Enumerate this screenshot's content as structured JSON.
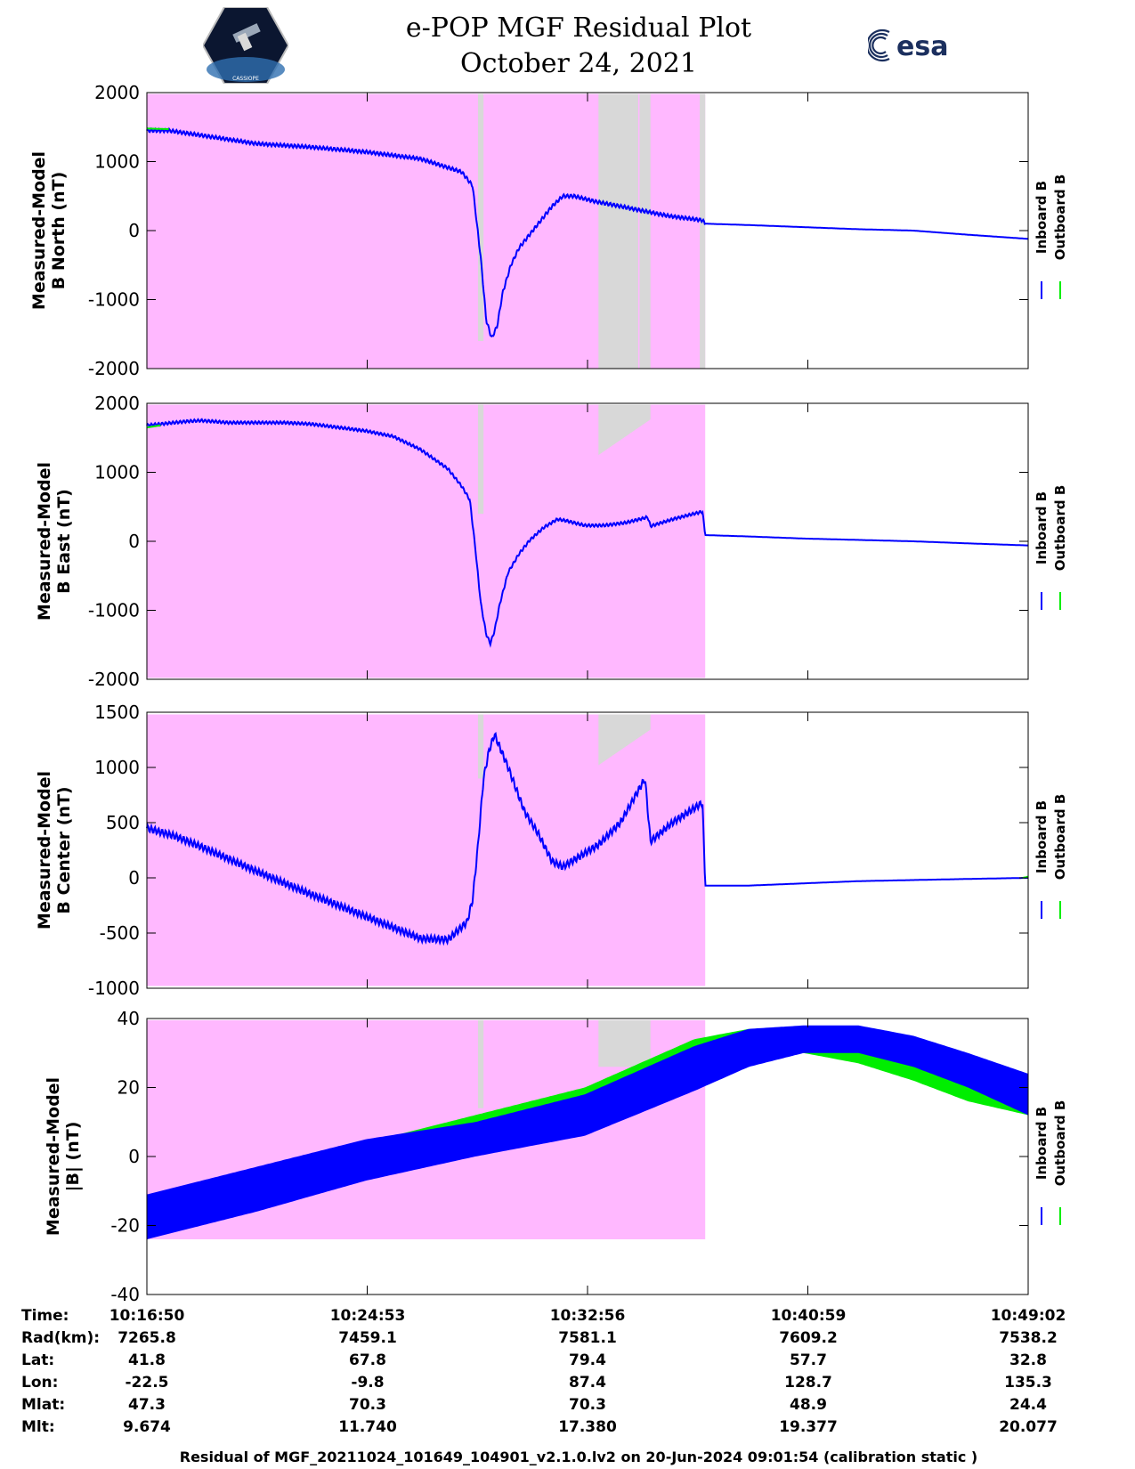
{
  "header": {
    "title_line1": "e-POP MGF Residual Plot",
    "title_line2": "October 24, 2021",
    "left_logo_text": "CASSIOPE",
    "right_logo_text": "esa"
  },
  "footer": "Residual of MGF_20211024_101649_104901_v2.1.0.lv2 on 20-Jun-2024 09:01:54 (calibration static )",
  "colors": {
    "inboard": "#0000ff",
    "outboard": "#00ee00",
    "shade_magenta": "#ffb8ff",
    "shade_gray": "#d8d8d8"
  },
  "ephemeris": {
    "rows": [
      {
        "label": "Time:",
        "values": [
          "10:16:50",
          "10:24:53",
          "10:32:56",
          "10:40:59",
          "10:49:02"
        ]
      },
      {
        "label": "Rad(km):",
        "values": [
          "7265.8",
          "7459.1",
          "7581.1",
          "7609.2",
          "7538.2"
        ]
      },
      {
        "label": "Lat:",
        "values": [
          "41.8",
          "67.8",
          "79.4",
          "57.7",
          "32.8"
        ]
      },
      {
        "label": "Lon:",
        "values": [
          "-22.5",
          "-9.8",
          "87.4",
          "128.7",
          "135.3"
        ]
      },
      {
        "label": "Mlat:",
        "values": [
          "47.3",
          "70.3",
          "70.3",
          "48.9",
          "24.4"
        ]
      },
      {
        "label": "Mlt:",
        "values": [
          "9.674",
          "11.740",
          "17.380",
          "19.377",
          "20.077"
        ]
      }
    ]
  },
  "chart_data": [
    {
      "type": "line",
      "ylabel": [
        "Measured-Model",
        "B North (nT)"
      ],
      "ylim": [
        -2000,
        2000
      ],
      "yticks": [
        2000,
        1000,
        0,
        -1000,
        -2000
      ],
      "xlim_minutes": [
        0,
        32.2
      ],
      "xtick_minutes": [
        0,
        8.05,
        16.1,
        24.15,
        32.2
      ],
      "magenta_span": [
        0,
        20.4
      ],
      "magenta_top": 1980,
      "gray_bands": [
        {
          "x0": 12.1,
          "x1": 12.3,
          "top": 1980,
          "bottom": -1600
        },
        {
          "x0": 16.5,
          "x1": 17.95,
          "top": 1980,
          "bottom": -2000
        },
        {
          "x0": 18.0,
          "x1": 18.4,
          "top": 1980,
          "bottom": -2000
        },
        {
          "x0": 20.2,
          "x1": 20.4,
          "top": 1980,
          "bottom": -2000
        }
      ],
      "series": [
        {
          "name": "Inboard B",
          "color": "#0000ff",
          "x": [
            0,
            0.8,
            2,
            4,
            6,
            8,
            10,
            11.5,
            11.9,
            12.2,
            12.4,
            12.6,
            12.8,
            13.0,
            13.3,
            13.6,
            14.0,
            14.4,
            14.8,
            15.2,
            15.6,
            16.4,
            17.2,
            18.2,
            19.1,
            20.3,
            20.4,
            22,
            24,
            26,
            28,
            30,
            32.2
          ],
          "y": [
            1450,
            1450,
            1380,
            1260,
            1210,
            1140,
            1040,
            850,
            650,
            -400,
            -1300,
            -1560,
            -1380,
            -900,
            -500,
            -250,
            -50,
            150,
            350,
            500,
            500,
            420,
            360,
            280,
            210,
            150,
            100,
            80,
            50,
            20,
            0,
            -60,
            -120
          ],
          "ripple": 25,
          "ripple_until": 20.4
        },
        {
          "name": "Outboard B",
          "color": "#00ee00",
          "x": [
            0,
            0.8
          ],
          "y": [
            1480,
            1470
          ]
        }
      ]
    },
    {
      "type": "line",
      "ylabel": [
        "Measured-Model",
        "B East (nT)"
      ],
      "ylim": [
        -2000,
        2000
      ],
      "yticks": [
        2000,
        1000,
        0,
        -1000,
        -2000
      ],
      "xlim_minutes": [
        0,
        32.2
      ],
      "xtick_minutes": [
        0,
        8.05,
        16.1,
        24.15,
        32.2
      ],
      "magenta_span": [
        0,
        20.4
      ],
      "magenta_top": 1980,
      "magenta_bottom": -1980,
      "gray_bands": [
        {
          "x0": 12.1,
          "x1": 12.3,
          "top": 1980,
          "bottom": 400
        },
        {
          "x0": 16.5,
          "x1": 18.4,
          "top": 1980,
          "bottom": 1250,
          "slanted": true
        }
      ],
      "series": [
        {
          "name": "Inboard B",
          "color": "#0000ff",
          "x": [
            0,
            1.5,
            2,
            3,
            5,
            6,
            8,
            9,
            10,
            11,
            11.5,
            11.8,
            12.0,
            12.2,
            12.4,
            12.55,
            12.7,
            12.9,
            13.2,
            13.6,
            14.0,
            14.5,
            15.0,
            15.3,
            16.0,
            16.7,
            17.5,
            18.3,
            18.4,
            19.3,
            20.3,
            20.4,
            22,
            24,
            26,
            28,
            30,
            32.2
          ],
          "y": [
            1680,
            1740,
            1750,
            1720,
            1720,
            1700,
            1600,
            1520,
            1330,
            1050,
            800,
            600,
            -100,
            -900,
            -1350,
            -1480,
            -1300,
            -900,
            -450,
            -180,
            20,
            200,
            320,
            300,
            230,
            230,
            270,
            350,
            220,
            330,
            430,
            90,
            70,
            40,
            20,
            0,
            -30,
            -60
          ],
          "ripple": 20,
          "ripple_until": 20.4
        },
        {
          "name": "Outboard B",
          "color": "#00ee00",
          "x": [
            0,
            0.5
          ],
          "y": [
            1650,
            1680
          ]
        }
      ]
    },
    {
      "type": "line",
      "ylabel": [
        "Measured-Model",
        "B Center (nT)"
      ],
      "ylim": [
        -1000,
        1500
      ],
      "yticks": [
        1500,
        1000,
        500,
        0,
        -500,
        -1000
      ],
      "xlim_minutes": [
        0,
        32.2
      ],
      "xtick_minutes": [
        0,
        8.05,
        16.1,
        24.15,
        32.2
      ],
      "magenta_span": [
        0,
        20.4
      ],
      "magenta_top": 1480,
      "magenta_bottom": -980,
      "gray_bands": [
        {
          "x0": 12.1,
          "x1": 12.3,
          "top": 1480,
          "bottom": 900
        },
        {
          "x0": 16.5,
          "x1": 18.4,
          "top": 1480,
          "bottom": 1020,
          "slanted": true
        }
      ],
      "series": [
        {
          "name": "Inboard B",
          "color": "#0000ff",
          "x": [
            0,
            1,
            2,
            4,
            6,
            8,
            9,
            10,
            11,
            11.7,
            11.9,
            12.1,
            12.3,
            12.5,
            12.7,
            13.2,
            13.8,
            14.3,
            14.8,
            15.2,
            16.5,
            17.3,
            18.2,
            18.4,
            19.2,
            20.3,
            20.4,
            22,
            24,
            26,
            28,
            30,
            32.2
          ],
          "y": [
            450,
            380,
            280,
            60,
            -150,
            -350,
            -450,
            -550,
            -560,
            -400,
            -200,
            300,
            900,
            1150,
            1300,
            1000,
            600,
            400,
            150,
            100,
            300,
            500,
            900,
            330,
            500,
            680,
            -70,
            -70,
            -50,
            -30,
            -20,
            -10,
            0
          ],
          "ripple": 30,
          "ripple_until": 20.4
        },
        {
          "name": "Outboard B",
          "color": "#00ee00",
          "x": [
            32.0,
            32.2
          ],
          "y": [
            0,
            10
          ]
        }
      ]
    },
    {
      "type": "line",
      "ylabel": [
        "Measured-Model",
        "|B| (nT)"
      ],
      "ylim": [
        -40,
        40
      ],
      "yticks": [
        40,
        20,
        0,
        -20,
        -40
      ],
      "xlim_minutes": [
        0,
        32.2
      ],
      "xtick_minutes": [
        0,
        8.05,
        16.1,
        24.15,
        32.2
      ],
      "magenta_span": [
        0,
        20.4
      ],
      "magenta_top": 39.5,
      "magenta_bottom": -24,
      "gray_bands": [
        {
          "x0": 12.1,
          "x1": 12.3,
          "top": 39.5,
          "bottom": 14
        },
        {
          "x0": 16.5,
          "x1": 18.4,
          "top": 39.5,
          "bottom": 26
        }
      ],
      "series": [
        {
          "name": "Outboard B",
          "color": "#00ee00",
          "x": [
            0,
            4,
            8,
            12,
            16,
            20,
            22,
            24,
            26,
            28,
            30,
            32.2
          ],
          "upper": [
            -13,
            -5,
            4,
            12,
            20,
            34,
            37,
            36,
            33,
            27,
            21,
            15
          ],
          "lower": [
            -22,
            -14,
            -4,
            4,
            12,
            24,
            30,
            30,
            27,
            22,
            16,
            12
          ]
        },
        {
          "name": "Inboard B",
          "color": "#0000ff",
          "x": [
            0,
            4,
            8,
            12,
            16,
            20,
            22,
            24,
            26,
            28,
            30,
            32.2
          ],
          "upper": [
            -11,
            -3,
            5,
            10,
            18,
            32,
            37,
            38,
            38,
            35,
            30,
            24
          ],
          "lower": [
            -24,
            -16,
            -7,
            0,
            6,
            19,
            26,
            30,
            30,
            26,
            20,
            12
          ]
        }
      ]
    }
  ]
}
